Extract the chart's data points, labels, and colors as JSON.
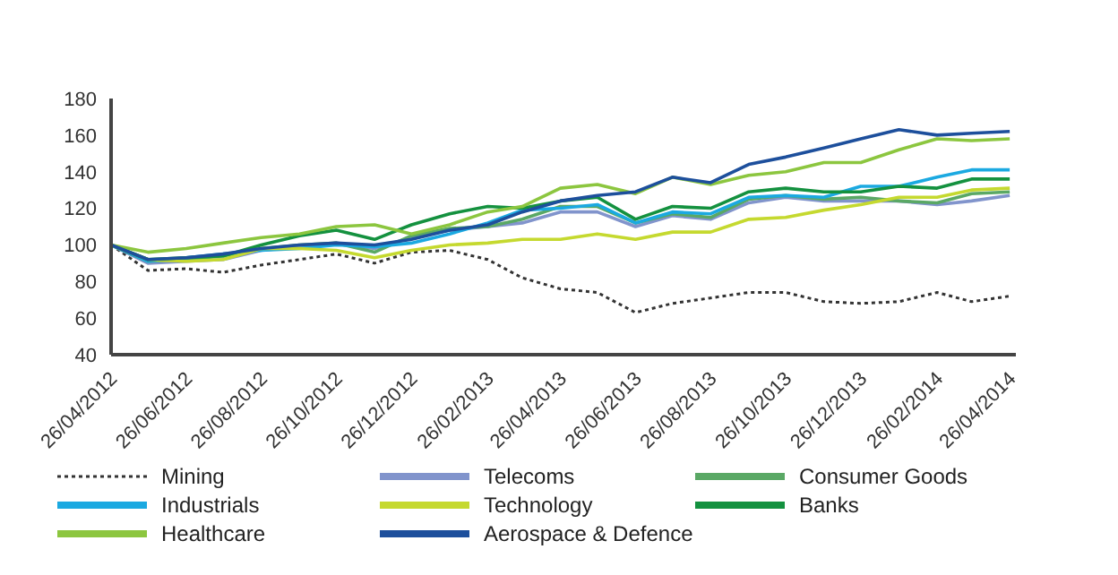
{
  "chart_data": {
    "type": "line",
    "x": [
      "2012-04-26",
      "2012-05-26",
      "2012-06-26",
      "2012-07-26",
      "2012-08-26",
      "2012-09-26",
      "2012-10-26",
      "2012-11-26",
      "2012-12-26",
      "2013-01-26",
      "2013-02-26",
      "2013-03-26",
      "2013-04-26",
      "2013-05-26",
      "2013-06-26",
      "2013-07-26",
      "2013-08-26",
      "2013-09-26",
      "2013-10-26",
      "2013-11-26",
      "2013-12-26",
      "2014-01-26",
      "2014-02-26",
      "2014-03-26",
      "2014-04-26"
    ],
    "series": [
      {
        "name": "Mining",
        "color": "#333333",
        "line_style": "dotted",
        "values": [
          100,
          86,
          87,
          85,
          89,
          92,
          95,
          90,
          96,
          97,
          92,
          82,
          76,
          74,
          63,
          68,
          71,
          74,
          74,
          69,
          68,
          69,
          74,
          69,
          72
        ]
      },
      {
        "name": "Telecoms",
        "color": "#8194cc",
        "values": [
          100,
          90,
          91,
          92,
          97,
          99,
          101,
          98,
          104,
          108,
          110,
          112,
          118,
          118,
          110,
          116,
          114,
          123,
          126,
          124,
          124,
          124,
          122,
          124,
          127
        ]
      },
      {
        "name": "Consumer Goods",
        "color": "#5aa865",
        "values": [
          100,
          91,
          92,
          94,
          98,
          100,
          101,
          96,
          105,
          109,
          110,
          114,
          121,
          121,
          112,
          117,
          115,
          125,
          127,
          125,
          126,
          124,
          123,
          128,
          129
        ]
      },
      {
        "name": "Industrials",
        "color": "#1ba9e1",
        "values": [
          100,
          91,
          93,
          95,
          97,
          98,
          100,
          99,
          101,
          106,
          112,
          119,
          120,
          122,
          112,
          118,
          117,
          126,
          127,
          126,
          132,
          132,
          137,
          141,
          141
        ]
      },
      {
        "name": "Technology",
        "color": "#c5d92f",
        "values": [
          100,
          92,
          91,
          92,
          98,
          98,
          97,
          93,
          97,
          100,
          101,
          103,
          103,
          106,
          103,
          107,
          107,
          114,
          115,
          119,
          122,
          126,
          126,
          130,
          131
        ]
      },
      {
        "name": "Banks",
        "color": "#14913f",
        "values": [
          100,
          92,
          93,
          94,
          100,
          105,
          108,
          103,
          111,
          117,
          121,
          120,
          124,
          126,
          114,
          121,
          120,
          129,
          131,
          129,
          129,
          132,
          131,
          136,
          136
        ]
      },
      {
        "name": "Healthcare",
        "color": "#8cc63f",
        "values": [
          100,
          96,
          98,
          101,
          104,
          106,
          110,
          111,
          106,
          111,
          118,
          121,
          131,
          133,
          128,
          137,
          133,
          138,
          140,
          145,
          145,
          152,
          158,
          157,
          158
        ]
      },
      {
        "name": "Aerospace & Defence",
        "color": "#1d4f9c",
        "values": [
          100,
          92,
          93,
          95,
          98,
          100,
          101,
          100,
          103,
          108,
          111,
          118,
          124,
          127,
          129,
          137,
          134,
          144,
          148,
          153,
          158,
          163,
          160,
          161,
          162
        ]
      }
    ],
    "xlim": [
      "2012-04-26",
      "2014-05-01"
    ],
    "xticks": [
      {
        "value": "2012-04-26",
        "label": "26/04/2012"
      },
      {
        "value": "2012-06-26",
        "label": "26/06/2012"
      },
      {
        "value": "2012-08-26",
        "label": "26/08/2012"
      },
      {
        "value": "2012-10-26",
        "label": "26/10/2012"
      },
      {
        "value": "2012-12-26",
        "label": "26/12/2012"
      },
      {
        "value": "2013-02-26",
        "label": "26/02/2013"
      },
      {
        "value": "2013-04-26",
        "label": "26/04/2013"
      },
      {
        "value": "2013-06-26",
        "label": "26/06/2013"
      },
      {
        "value": "2013-08-26",
        "label": "26/08/2013"
      },
      {
        "value": "2013-10-26",
        "label": "26/10/2013"
      },
      {
        "value": "2013-12-26",
        "label": "26/12/2013"
      },
      {
        "value": "2014-02-26",
        "label": "26/02/2014"
      },
      {
        "value": "2014-04-26",
        "label": "26/04/2014"
      }
    ],
    "ylim": [
      40,
      180
    ],
    "yticks": [
      40,
      60,
      80,
      100,
      120,
      140,
      160,
      180
    ],
    "grid": false,
    "legend": "bottom"
  }
}
